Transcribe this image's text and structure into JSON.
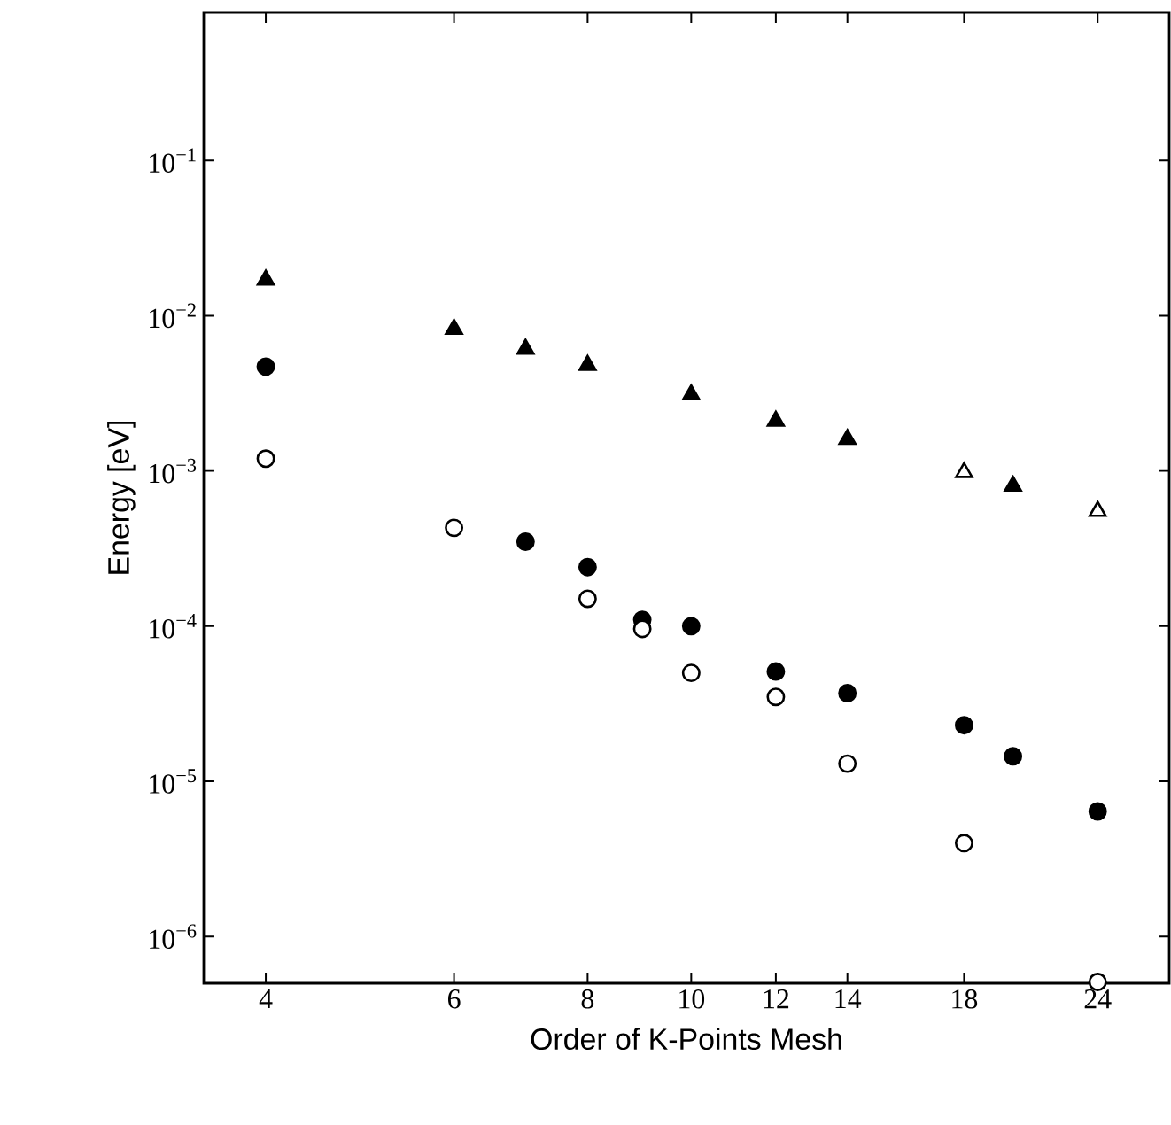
{
  "chart_data": {
    "type": "scatter",
    "xlabel": "Order of K-Points Mesh",
    "ylabel": "Energy [eV]",
    "log": "xy",
    "xlim": [
      3.5,
      28
    ],
    "ylim": [
      5e-07,
      0.9
    ],
    "xticks": [
      4,
      6,
      8,
      10,
      12,
      14,
      18,
      24
    ],
    "yticks": [
      {
        "value": 0.1,
        "label": "10$^{−1}$"
      },
      {
        "value": 0.01,
        "label": "10$^{−2}$"
      },
      {
        "value": 0.001,
        "label": "10$^{−3}$"
      },
      {
        "value": 0.0001,
        "label": "10$^{−4}$"
      },
      {
        "value": 1e-05,
        "label": "10$^{−5}$"
      },
      {
        "value": 1e-06,
        "label": "10$^{−6}$"
      }
    ],
    "grid": false,
    "series": [
      {
        "marker": "triangle",
        "color": "#000000",
        "x": [
          4,
          6,
          7,
          8,
          10,
          12,
          14,
          20
        ],
        "values": [
          0.017,
          0.0082,
          0.0061,
          0.0048,
          0.0031,
          0.0021,
          0.0016,
          0.0008
        ]
      },
      {
        "marker": "triangle",
        "color": "#ffffff",
        "x": [
          18,
          24
        ],
        "values": [
          0.00098,
          0.00055
        ]
      },
      {
        "marker": "circle",
        "color": "#000000",
        "x": [
          4,
          7,
          8,
          9,
          10,
          12,
          14,
          18,
          20,
          24
        ],
        "values": [
          0.0047,
          0.00035,
          0.00024,
          0.00011,
          0.0001,
          5.1e-05,
          3.7e-05,
          2.3e-05,
          1.45e-05,
          6.4e-06
        ]
      },
      {
        "marker": "circle",
        "color": "#ffffff",
        "x": [
          4,
          6,
          8,
          9,
          10,
          12,
          14,
          18,
          24
        ],
        "values": [
          0.0012,
          0.00043,
          0.00015,
          9.6e-05,
          5e-05,
          3.5e-05,
          1.3e-05,
          4e-06,
          5.1e-07
        ]
      }
    ]
  }
}
